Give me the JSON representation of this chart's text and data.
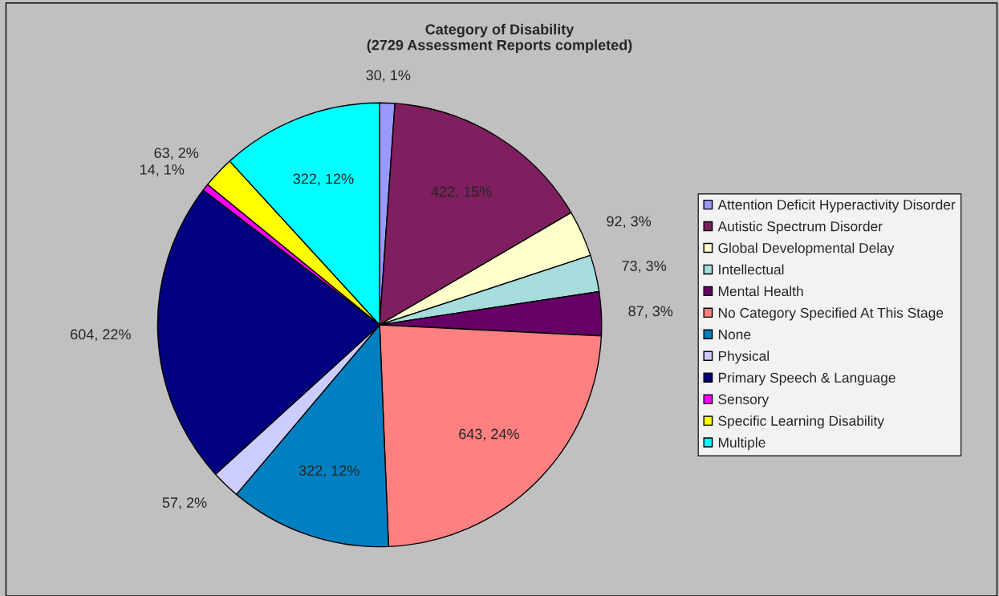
{
  "chart_data": {
    "type": "pie",
    "title": "Category of Disability\n(2729 Assessment Reports completed)",
    "categories": [
      "Attention Deficit Hyperactivity Disorder",
      "Autistic Spectrum Disorder",
      "Global Developmental Delay",
      "Intellectual",
      "Mental Health",
      "No Category Specified At This Stage",
      "None",
      "Physical",
      "Primary Speech & Language",
      "Sensory",
      "Specific Learning Disability",
      "Multiple"
    ],
    "values": [
      30,
      422,
      92,
      73,
      87,
      643,
      322,
      57,
      604,
      14,
      63,
      322
    ],
    "value_labels": [
      "30, 1%",
      "422, 15%",
      "92, 3%",
      "73, 3%",
      "87, 3%",
      "643, 24%",
      "322, 12%",
      "57, 2%",
      "604, 22%",
      "14, 1%",
      "63, 2%",
      "322, 12%"
    ],
    "colors": [
      "#9999ff",
      "#7f1f5f",
      "#ffffcc",
      "#a6dcdc",
      "#660066",
      "#ff8080",
      "#0080c0",
      "#ccccff",
      "#000080",
      "#ff00ff",
      "#ffff00",
      "#00ffff"
    ],
    "legend": "right"
  }
}
